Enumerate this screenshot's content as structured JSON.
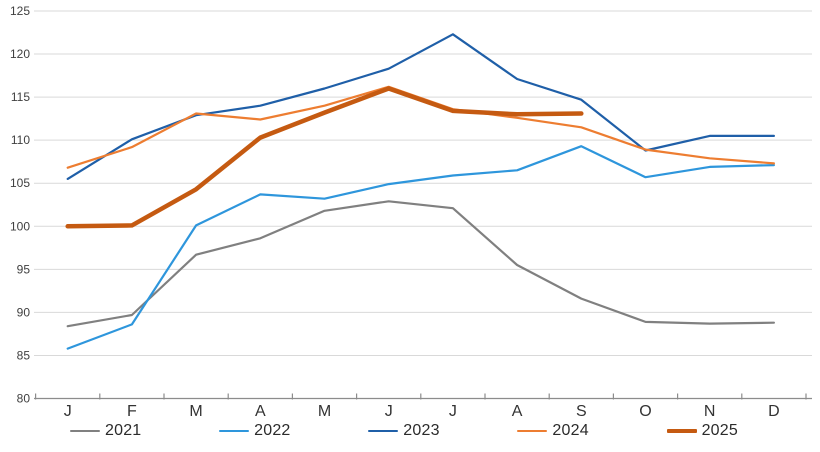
{
  "chart_data": {
    "type": "line",
    "title": "",
    "xlabel": "",
    "ylabel": "",
    "categories": [
      "J",
      "F",
      "M",
      "A",
      "M",
      "J",
      "J",
      "A",
      "S",
      "O",
      "N",
      "D"
    ],
    "y_axis": {
      "min": 80,
      "max": 125,
      "step": 5
    },
    "grid": true,
    "legend_position": "bottom",
    "colors": {
      "grid": "#D9D9D9",
      "axis": "#8C8C8C",
      "tick_label": "#404040",
      "month_label": "#333333"
    },
    "series": [
      {
        "name": "2021",
        "color": "#808080",
        "stroke_width": 2.2,
        "values": [
          88.4,
          89.7,
          96.7,
          98.6,
          101.8,
          102.9,
          102.1,
          95.5,
          91.6,
          88.9,
          88.7,
          88.8
        ]
      },
      {
        "name": "2022",
        "color": "#2E96DC",
        "stroke_width": 2.2,
        "values": [
          85.8,
          88.6,
          100.1,
          103.7,
          103.2,
          104.9,
          105.9,
          106.5,
          109.3,
          105.7,
          106.9,
          107.1
        ]
      },
      {
        "name": "2023",
        "color": "#1F5FA8",
        "stroke_width": 2.2,
        "values": [
          105.5,
          110.1,
          112.9,
          114.0,
          116.0,
          118.3,
          122.3,
          117.1,
          114.7,
          108.8,
          110.5,
          110.5
        ]
      },
      {
        "name": "2024",
        "color": "#ED7D31",
        "stroke_width": 2.2,
        "values": [
          106.8,
          109.2,
          113.1,
          112.4,
          114.0,
          116.2,
          113.6,
          112.6,
          111.5,
          108.9,
          107.9,
          107.3
        ]
      },
      {
        "name": "2025",
        "color": "#C55A11",
        "stroke_width": 4.5,
        "values": [
          100.0,
          100.1,
          104.3,
          110.3,
          113.2,
          116.0,
          113.4,
          113.0,
          113.1
        ]
      }
    ]
  }
}
